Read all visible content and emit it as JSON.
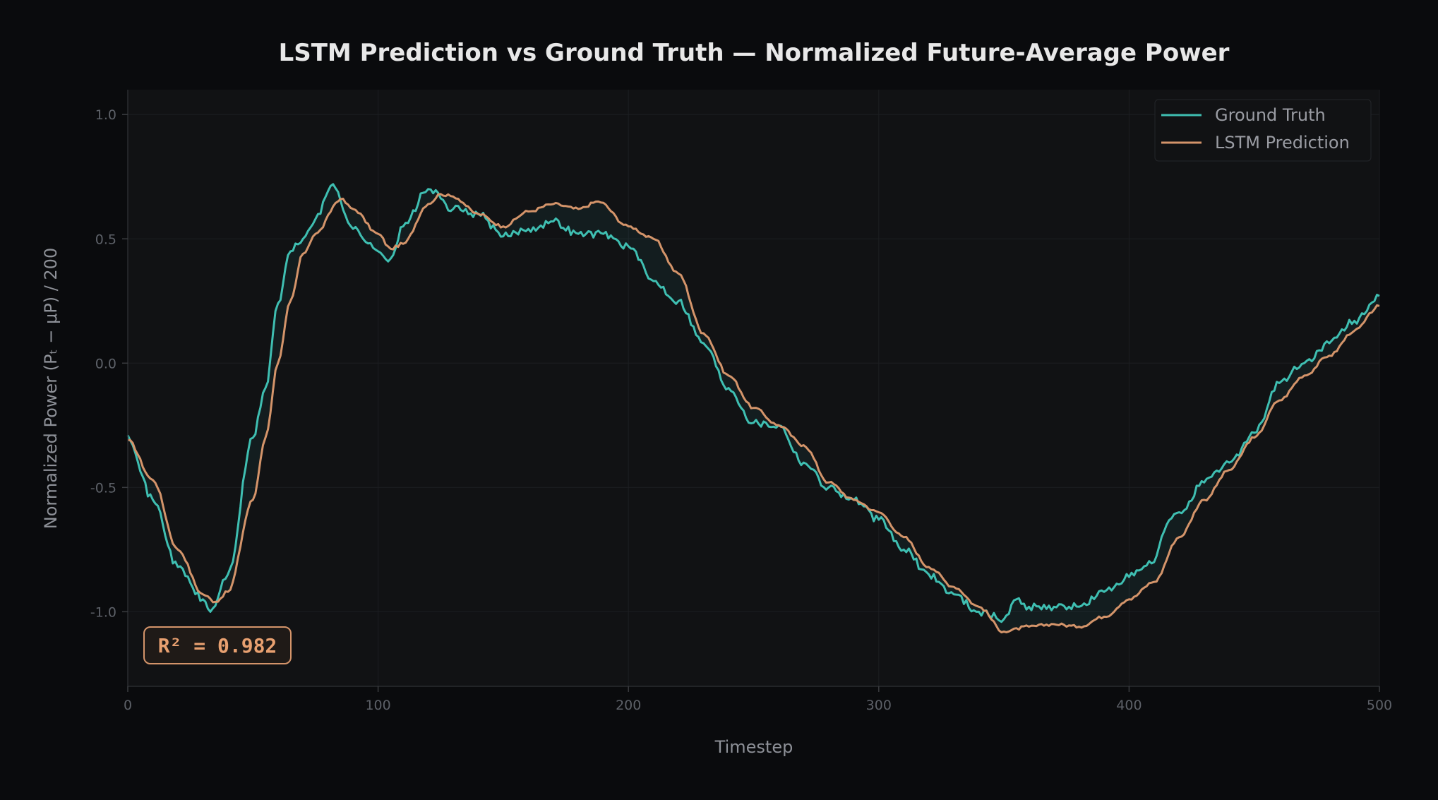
{
  "chart_data": {
    "type": "line",
    "title": "LSTM Prediction vs Ground Truth — Normalized Future-Average Power",
    "xlabel": "Timestep",
    "ylabel": "Normalized Power  (Pₜ − μP) / 200",
    "xlim": [
      0,
      500
    ],
    "ylim": [
      -1.3,
      1.1
    ],
    "xticks": [
      0,
      100,
      200,
      300,
      400,
      500
    ],
    "xtick_labels": [
      "0",
      "100",
      "200",
      "300",
      "400",
      "500"
    ],
    "yticks": [
      1.0,
      0.5,
      0.0,
      -0.5,
      -1.0
    ],
    "ytick_labels": [
      "1.0",
      "0.5",
      "0.0",
      "-0.5",
      "-1.0"
    ],
    "grid": true,
    "legend_position": "top-right",
    "annotation": "R² = 0.982",
    "series": [
      {
        "name": "Ground Truth",
        "color": "#3fbfb2",
        "x": [
          0,
          10,
          20,
          30,
          33,
          40,
          50,
          55,
          60,
          65,
          70,
          75,
          82,
          90,
          100,
          105,
          110,
          120,
          130,
          140,
          150,
          160,
          170,
          180,
          190,
          200,
          210,
          220,
          230,
          240,
          250,
          260,
          270,
          280,
          290,
          300,
          310,
          320,
          330,
          340,
          350,
          355,
          360,
          370,
          380,
          390,
          400,
          410,
          415,
          420,
          430,
          440,
          450,
          460,
          470,
          480,
          490,
          500
        ],
        "y": [
          -0.29,
          -0.55,
          -0.82,
          -0.95,
          -1.0,
          -0.85,
          -0.3,
          -0.1,
          0.24,
          0.45,
          0.5,
          0.58,
          0.72,
          0.54,
          0.45,
          0.42,
          0.55,
          0.7,
          0.62,
          0.6,
          0.51,
          0.54,
          0.57,
          0.52,
          0.52,
          0.47,
          0.33,
          0.25,
          0.08,
          -0.1,
          -0.24,
          -0.25,
          -0.4,
          -0.5,
          -0.55,
          -0.63,
          -0.75,
          -0.85,
          -0.93,
          -1.0,
          -1.03,
          -0.95,
          -0.98,
          -0.98,
          -0.98,
          -0.92,
          -0.86,
          -0.8,
          -0.65,
          -0.6,
          -0.48,
          -0.4,
          -0.28,
          -0.08,
          0.0,
          0.08,
          0.17,
          0.27
        ]
      },
      {
        "name": "LSTM Prediction",
        "color": "#d4946a",
        "x": [
          0,
          10,
          20,
          30,
          35,
          40,
          50,
          55,
          60,
          65,
          70,
          75,
          85,
          90,
          100,
          105,
          110,
          120,
          125,
          130,
          140,
          150,
          160,
          170,
          180,
          188,
          200,
          210,
          220,
          230,
          240,
          250,
          260,
          270,
          280,
          290,
          300,
          310,
          320,
          330,
          340,
          350,
          360,
          370,
          380,
          390,
          400,
          410,
          420,
          430,
          440,
          450,
          460,
          470,
          480,
          490,
          500
        ],
        "y": [
          -0.31,
          -0.47,
          -0.75,
          -0.93,
          -0.96,
          -0.92,
          -0.55,
          -0.3,
          0.0,
          0.25,
          0.44,
          0.52,
          0.66,
          0.62,
          0.52,
          0.46,
          0.48,
          0.64,
          0.68,
          0.67,
          0.6,
          0.55,
          0.61,
          0.64,
          0.62,
          0.65,
          0.55,
          0.5,
          0.36,
          0.12,
          -0.05,
          -0.18,
          -0.25,
          -0.33,
          -0.48,
          -0.55,
          -0.6,
          -0.7,
          -0.82,
          -0.9,
          -0.98,
          -1.08,
          -1.06,
          -1.05,
          -1.06,
          -1.02,
          -0.95,
          -0.88,
          -0.7,
          -0.55,
          -0.43,
          -0.3,
          -0.15,
          -0.05,
          0.03,
          0.13,
          0.23
        ]
      }
    ]
  }
}
